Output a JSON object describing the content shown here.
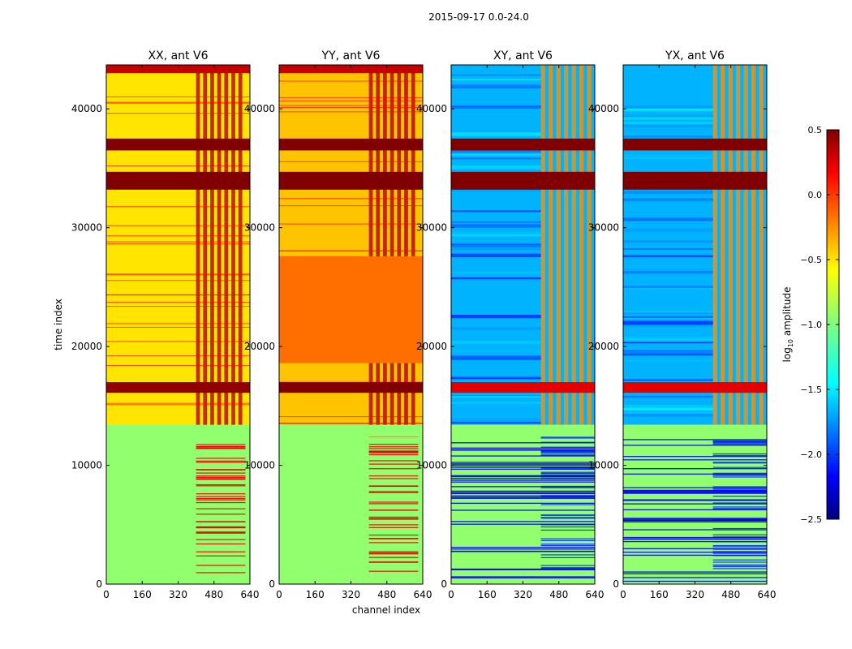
{
  "figure": {
    "suptitle": "2015-09-17 0.0-24.0"
  },
  "chart_data": {
    "type": "heatmap",
    "xlabel": "channel index",
    "ylabel": "time index",
    "xlim": [
      0,
      640
    ],
    "ylim": [
      0,
      43700
    ],
    "xticks": [
      "0",
      "160",
      "320",
      "480",
      "640"
    ],
    "yticks": [
      "0",
      "10000",
      "20000",
      "30000",
      "40000"
    ],
    "colorbar": {
      "label": "log10 amplitude",
      "label_main": "log",
      "label_sub": "10",
      "label_rest": " amplitude",
      "range": [
        -2.5,
        0.5
      ],
      "ticks": [
        "0.5",
        "0.0",
        "−0.5",
        "−1.0",
        "−1.5",
        "−2.0",
        "−2.5"
      ],
      "colormap": "jet"
    },
    "panels": [
      {
        "title": "XX, ant V6",
        "kind": "parallel",
        "base_upper": -0.55,
        "base_lower": -0.95,
        "rfi_channels": [
          400,
          620
        ],
        "bands": [
          {
            "t": [
              43000,
              43700
            ],
            "v": 0.3
          },
          {
            "t": [
              36500,
              37500
            ],
            "v": 0.5
          },
          {
            "t": [
              33200,
              34700
            ],
            "v": 0.5
          },
          {
            "t": [
              16100,
              17000
            ],
            "v": 0.45
          },
          {
            "t": [
              12400,
              13400
            ],
            "v": -0.95
          }
        ]
      },
      {
        "title": "YY, ant V6",
        "kind": "parallel",
        "base_upper": -0.45,
        "base_lower": -0.95,
        "rfi_channels": [
          400,
          620
        ],
        "bands": [
          {
            "t": [
              43000,
              43700
            ],
            "v": 0.3
          },
          {
            "t": [
              36500,
              37500
            ],
            "v": 0.5
          },
          {
            "t": [
              33200,
              34700
            ],
            "v": 0.5
          },
          {
            "t": [
              18600,
              27600
            ],
            "v": -0.2
          },
          {
            "t": [
              16100,
              17000
            ],
            "v": 0.5
          },
          {
            "t": [
              12400,
              13400
            ],
            "v": -0.95
          }
        ]
      },
      {
        "title": "XY, ant V6",
        "kind": "cross",
        "base_upper": -1.6,
        "base_lower": -0.95,
        "rfi_channels": [
          400,
          640
        ],
        "bands": [
          {
            "t": [
              36500,
              37500
            ],
            "v": 0.5
          },
          {
            "t": [
              33200,
              34700
            ],
            "v": 0.5
          },
          {
            "t": [
              16100,
              17000
            ],
            "v": 0.2
          },
          {
            "t": [
              12400,
              13400
            ],
            "v": -0.95
          }
        ]
      },
      {
        "title": "YX, ant V6",
        "kind": "cross",
        "base_upper": -1.6,
        "base_lower": -0.95,
        "rfi_channels": [
          400,
          640
        ],
        "bands": [
          {
            "t": [
              36500,
              37500
            ],
            "v": 0.5
          },
          {
            "t": [
              33200,
              34700
            ],
            "v": 0.5
          },
          {
            "t": [
              16100,
              17000
            ],
            "v": 0.2
          },
          {
            "t": [
              12400,
              13400
            ],
            "v": -0.95
          }
        ]
      }
    ]
  }
}
